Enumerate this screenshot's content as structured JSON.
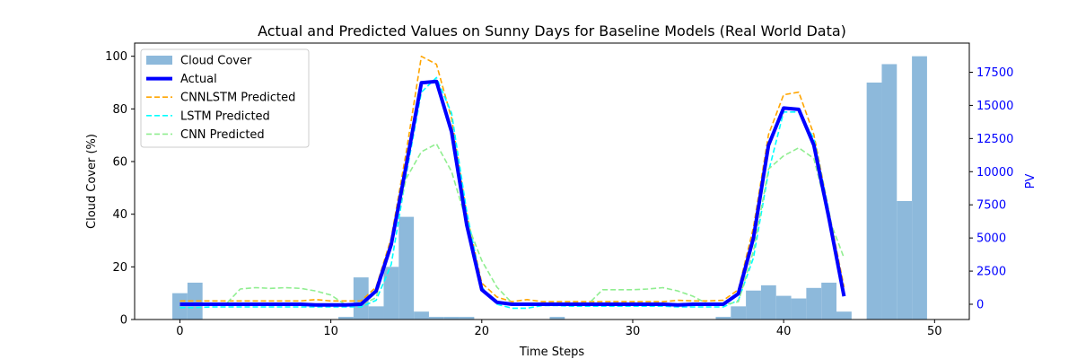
{
  "chart_data": {
    "type": "bar+line",
    "title": "Actual and Predicted Values on Sunny Days for Baseline Models (Real World Data)",
    "xlabel": "Time Steps",
    "ylabel_left": "Cloud Cover (%)",
    "ylabel_right": "PV",
    "xlim": [
      -3,
      52.3
    ],
    "ylim_left": [
      0,
      105
    ],
    "ylim_right": [
      -1150,
      19700
    ],
    "xticks": [
      0,
      10,
      20,
      30,
      40,
      50
    ],
    "yticks_left": [
      0,
      20,
      40,
      60,
      80,
      100
    ],
    "yticks_right": [
      0,
      2500,
      5000,
      7500,
      10000,
      12500,
      15000,
      17500
    ],
    "legend_position": "upper-left",
    "cloud_cover": {
      "name": "Cloud Cover",
      "color": "#8db9db",
      "x": [
        0,
        1,
        2,
        3,
        4,
        5,
        6,
        7,
        8,
        9,
        10,
        11,
        12,
        13,
        14,
        15,
        16,
        17,
        18,
        19,
        20,
        21,
        22,
        23,
        24,
        25,
        26,
        27,
        28,
        29,
        30,
        31,
        32,
        33,
        34,
        35,
        36,
        37,
        38,
        39,
        40,
        41,
        42,
        43,
        44,
        45,
        46,
        47,
        48,
        49
      ],
      "values": [
        10,
        14,
        0,
        0,
        0,
        0,
        0,
        0,
        0,
        0,
        0,
        1,
        16,
        5,
        20,
        39,
        3,
        1,
        1,
        1,
        0,
        0,
        0,
        0,
        0,
        1,
        0,
        0,
        0,
        0,
        0,
        0,
        0,
        0,
        0,
        0,
        1,
        5,
        11,
        13,
        9,
        8,
        12,
        14,
        3,
        0,
        90,
        97,
        45,
        100
      ]
    },
    "series": [
      {
        "name": "Actual",
        "color": "#0000ff",
        "style": "solid",
        "x": [
          0,
          1,
          2,
          3,
          4,
          5,
          6,
          7,
          8,
          9,
          10,
          11,
          12,
          13,
          14,
          15,
          16,
          17,
          18,
          19,
          20,
          21,
          22,
          23,
          24,
          25,
          26,
          27,
          28,
          29,
          30,
          31,
          32,
          33,
          34,
          35,
          36,
          37,
          38,
          39,
          40,
          41,
          42,
          43,
          44
        ],
        "values": [
          0,
          0,
          0,
          0,
          0,
          0,
          0,
          0,
          0,
          -50,
          -50,
          -50,
          0,
          1000,
          4500,
          10500,
          16700,
          16800,
          13000,
          6000,
          1100,
          150,
          0,
          0,
          0,
          0,
          0,
          0,
          0,
          0,
          0,
          0,
          0,
          -50,
          0,
          0,
          0,
          800,
          5000,
          12000,
          14800,
          14700,
          12000,
          6500,
          600
        ]
      },
      {
        "name": "CNNLSTM Predicted",
        "color": "#ffa500",
        "style": "dashed",
        "x": [
          0,
          1,
          2,
          3,
          4,
          5,
          6,
          7,
          8,
          9,
          10,
          11,
          12,
          13,
          14,
          15,
          16,
          17,
          18,
          19,
          20,
          21,
          22,
          23,
          24,
          25,
          26,
          27,
          28,
          29,
          30,
          31,
          32,
          33,
          34,
          35,
          36,
          37,
          38,
          39,
          40,
          41,
          42,
          43,
          44
        ],
        "values": [
          250,
          250,
          250,
          250,
          250,
          250,
          250,
          250,
          250,
          350,
          250,
          250,
          250,
          1300,
          5000,
          11500,
          18700,
          18100,
          14000,
          6800,
          1600,
          550,
          200,
          350,
          200,
          200,
          200,
          200,
          200,
          200,
          200,
          200,
          200,
          300,
          250,
          250,
          300,
          1100,
          5800,
          12800,
          15800,
          16000,
          12800,
          7000,
          1300
        ]
      },
      {
        "name": "LSTM Predicted",
        "color": "#00ffff",
        "style": "dashed",
        "x": [
          0,
          1,
          2,
          3,
          4,
          5,
          6,
          7,
          8,
          9,
          10,
          11,
          12,
          13,
          14,
          15,
          16,
          17,
          18,
          19,
          20,
          21,
          22,
          23,
          24,
          25,
          26,
          27,
          28,
          29,
          30,
          31,
          32,
          33,
          34,
          35,
          36,
          37,
          38,
          39,
          40,
          41,
          42,
          43,
          44
        ],
        "values": [
          -250,
          -250,
          -200,
          -200,
          -200,
          -200,
          -200,
          -200,
          -200,
          -200,
          -200,
          -200,
          -200,
          300,
          3000,
          9800,
          16000,
          17100,
          14400,
          7000,
          1300,
          0,
          -300,
          -300,
          -100,
          -100,
          -150,
          -150,
          -150,
          -150,
          -150,
          -150,
          -150,
          -200,
          -200,
          -200,
          -200,
          300,
          3500,
          10000,
          14500,
          14500,
          12500,
          7000,
          800
        ]
      },
      {
        "name": "CNN Predicted",
        "color": "#90ee90",
        "style": "dashed",
        "x": [
          0,
          1,
          2,
          3,
          4,
          5,
          6,
          7,
          8,
          9,
          10,
          11,
          12,
          13,
          14,
          15,
          16,
          17,
          18,
          19,
          20,
          21,
          22,
          23,
          24,
          25,
          26,
          27,
          28,
          29,
          30,
          31,
          32,
          33,
          34,
          35,
          36,
          37,
          38,
          39,
          40,
          41,
          42,
          43,
          44
        ],
        "values": [
          -50,
          -50,
          -50,
          -50,
          1150,
          1250,
          1200,
          1250,
          1200,
          1000,
          700,
          -50,
          -50,
          500,
          4800,
          9500,
          11500,
          12100,
          10000,
          6200,
          3300,
          1300,
          100,
          -100,
          -50,
          -50,
          -50,
          -50,
          1100,
          1100,
          1100,
          1150,
          1250,
          1000,
          600,
          0,
          -50,
          200,
          4000,
          10200,
          11200,
          11800,
          11000,
          6500,
          3500
        ]
      }
    ]
  }
}
